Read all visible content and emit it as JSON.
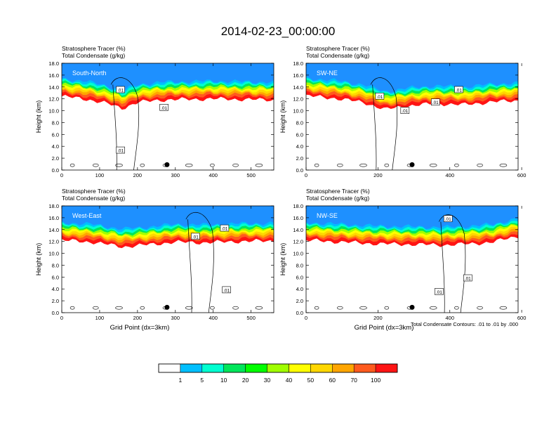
{
  "title": "2014-02-23_00:00:00",
  "contour_info": "Total Condensate Contours: .01 to .01 by .000",
  "colorbar": {
    "levels": [
      "1",
      "5",
      "10",
      "20",
      "30",
      "40",
      "50",
      "60",
      "70",
      "100"
    ],
    "colors": [
      "#ffffff",
      "#1e90ff",
      "#00bfff",
      "#00ffd0",
      "#00e65a",
      "#00ff00",
      "#a0ff00",
      "#ffff00",
      "#ffd700",
      "#ffa500",
      "#ff5a1e",
      "#ff1414"
    ]
  },
  "chart_data": [
    {
      "type": "heatmap",
      "panel_label": "South-North",
      "left_title_1": "Stratosphere Tracer   (%)",
      "left_title_2": "Total Condensate   (g/kg)",
      "ylabel": "Height (km)",
      "xlabel": "",
      "xlim": [
        0,
        560
      ],
      "ylim": [
        0,
        18
      ],
      "xticks": [
        "0",
        "100",
        "200",
        "300",
        "400",
        "500"
      ],
      "yticks": [
        "0.0",
        "2.0",
        "4.0",
        "6.0",
        "8.0",
        "10.0",
        "12.0",
        "14.0",
        "16.0",
        "18.0"
      ],
      "tropopause_km": [
        [
          0,
          14.8
        ],
        [
          60,
          14.4
        ],
        [
          120,
          13.6
        ],
        [
          160,
          12.8
        ],
        [
          200,
          13.8
        ],
        [
          260,
          14.2
        ],
        [
          320,
          14.3
        ],
        [
          400,
          14.4
        ],
        [
          480,
          14.3
        ],
        [
          560,
          14.2
        ]
      ],
      "contour_labels": [
        {
          "text": ".01",
          "x": 155,
          "y": 13.5
        },
        {
          "text": ".01",
          "x": 270,
          "y": 10.5
        },
        {
          "text": ".01",
          "x": 155,
          "y": 3.3
        }
      ],
      "dot": [
        278,
        0.9
      ]
    },
    {
      "type": "heatmap",
      "panel_label": "SW-NE",
      "left_title_1": "Stratosphere Tracer   (%)",
      "left_title_2": "Total Condensate   (g/kg)",
      "ylabel": "Height (km)",
      "xlabel": "",
      "xlim": [
        0,
        590
      ],
      "ylim": [
        0,
        18
      ],
      "xticks": [
        "0",
        "200",
        "400",
        "600"
      ],
      "yticks": [
        "0.0",
        "2.0",
        "4.0",
        "6.0",
        "8.0",
        "10.0",
        "12.0",
        "14.0",
        "16.0",
        "18.0"
      ],
      "tropopause_km": [
        [
          0,
          14.9
        ],
        [
          80,
          14.5
        ],
        [
          160,
          13.8
        ],
        [
          220,
          12.6
        ],
        [
          280,
          13.2
        ],
        [
          360,
          13.6
        ],
        [
          440,
          13.4
        ],
        [
          520,
          13.9
        ],
        [
          590,
          14.1
        ]
      ],
      "contour_labels": [
        {
          "text": ".01",
          "x": 205,
          "y": 12.4
        },
        {
          "text": ".01",
          "x": 275,
          "y": 10.0
        },
        {
          "text": ".01",
          "x": 360,
          "y": 11.4
        },
        {
          "text": ".01",
          "x": 425,
          "y": 13.5
        }
      ],
      "dot": [
        295,
        0.9
      ]
    },
    {
      "type": "heatmap",
      "panel_label": "West-East",
      "left_title_1": "Stratosphere Tracer   (%)",
      "left_title_2": "Total Condensate   (g/kg)",
      "ylabel": "Height (km)",
      "xlabel": "Grid Point (dx=3km)",
      "xlim": [
        0,
        560
      ],
      "ylim": [
        0,
        18
      ],
      "xticks": [
        "0",
        "100",
        "200",
        "300",
        "400",
        "500"
      ],
      "yticks": [
        "0.0",
        "2.0",
        "4.0",
        "6.0",
        "8.0",
        "10.0",
        "12.0",
        "14.0",
        "16.0",
        "18.0"
      ],
      "tropopause_km": [
        [
          0,
          14.6
        ],
        [
          80,
          14.3
        ],
        [
          160,
          13.5
        ],
        [
          220,
          13.8
        ],
        [
          300,
          14.3
        ],
        [
          380,
          14.2
        ],
        [
          460,
          14.4
        ],
        [
          560,
          14.5
        ]
      ],
      "contour_labels": [
        {
          "text": ".01",
          "x": 353,
          "y": 12.8
        },
        {
          "text": ".01",
          "x": 430,
          "y": 14.2
        },
        {
          "text": ".01",
          "x": 435,
          "y": 3.8
        }
      ],
      "dot": [
        278,
        0.9
      ]
    },
    {
      "type": "heatmap",
      "panel_label": "NW-SE",
      "left_title_1": "Stratosphere Tracer   (%)",
      "left_title_2": "Total Condensate   (g/kg)",
      "ylabel": "Height (km)",
      "xlabel": "Grid Point (dx=3km)",
      "xlim": [
        0,
        590
      ],
      "ylim": [
        0,
        18
      ],
      "xticks": [
        "0",
        "200",
        "400",
        "600"
      ],
      "yticks": [
        "0.0",
        "2.0",
        "4.0",
        "6.0",
        "8.0",
        "10.0",
        "12.0",
        "14.0",
        "16.0",
        "18.0"
      ],
      "tropopause_km": [
        [
          0,
          14.6
        ],
        [
          100,
          14.3
        ],
        [
          200,
          14.0
        ],
        [
          300,
          13.9
        ],
        [
          380,
          13.8
        ],
        [
          460,
          14.0
        ],
        [
          520,
          14.3
        ],
        [
          590,
          15.3
        ]
      ],
      "contour_labels": [
        {
          "text": ".01",
          "x": 395,
          "y": 15.8
        },
        {
          "text": ".01",
          "x": 450,
          "y": 5.8
        },
        {
          "text": ".01",
          "x": 370,
          "y": 3.5
        }
      ],
      "dot": [
        295,
        0.9
      ]
    }
  ]
}
